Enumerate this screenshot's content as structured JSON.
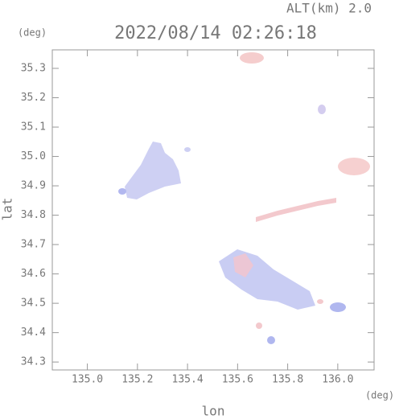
{
  "chart_data": {
    "type": "map",
    "title": "2022/08/14 02:26:18",
    "subtitle": "ALT(km) 2.0",
    "x_label": "lon",
    "y_label": "lat",
    "x_unit": "(deg)",
    "y_unit": "(deg)",
    "xlim": [
      134.86,
      136.145
    ],
    "ylim": [
      34.273,
      35.363
    ],
    "xticks": [
      {
        "value": 135.0,
        "label": "135.0"
      },
      135.2,
      135.4,
      135.6,
      135.8,
      {
        "value": 136.0,
        "label": "136.0"
      }
    ],
    "yticks": [
      34.3,
      34.4,
      34.5,
      34.6,
      34.7,
      34.8,
      34.9,
      {
        "value": 35.0,
        "label": "35.0"
      },
      35.1,
      35.2,
      35.3
    ]
  }
}
